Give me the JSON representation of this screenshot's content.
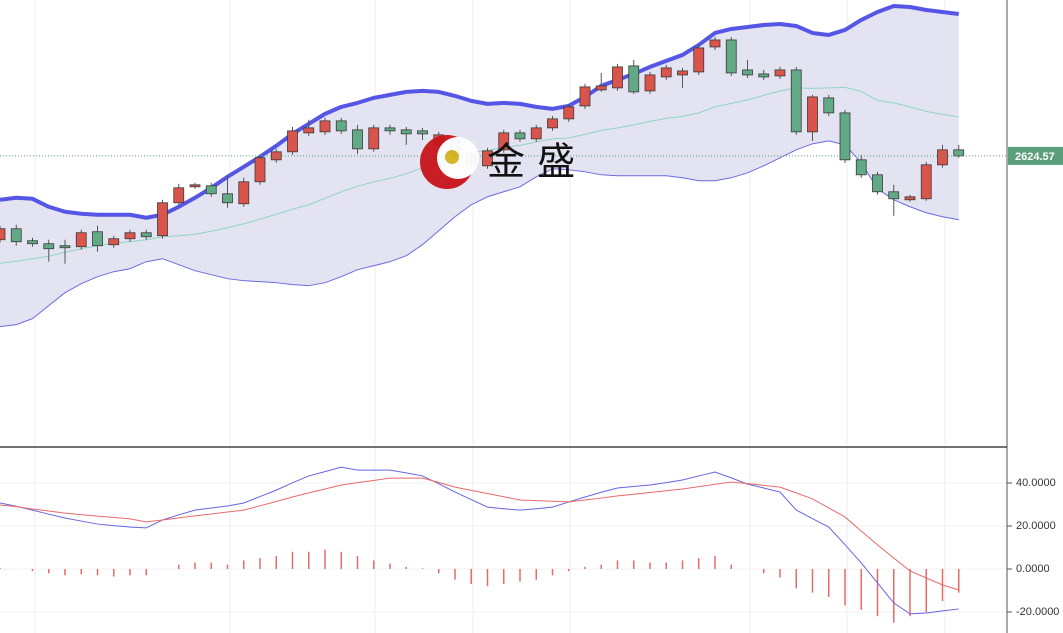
{
  "chart_data": [
    {
      "type": "candlestick",
      "ylim": [
        2508,
        2687
      ],
      "up_color": "#d9544a",
      "down_color": "#62a986",
      "band_fill": "#e3e3f1",
      "open": [
        2591,
        2595.4,
        2590.6,
        2589.4,
        2588.6,
        2588.2,
        2594.2,
        2589,
        2591.4,
        2593.8,
        2592.6,
        2605.8,
        2612.2,
        2612.6,
        2609.4,
        2605.4,
        2614.2,
        2623,
        2626.2,
        2633.8,
        2634.2,
        2638.6,
        2635,
        2627.4,
        2635.8,
        2635,
        2634.6,
        2629,
        2631,
        2625,
        2620.6,
        2627,
        2633.8,
        2631.4,
        2635.8,
        2639.4,
        2644.6,
        2651,
        2651.8,
        2660.6,
        2650.6,
        2656.2,
        2657,
        2658.2,
        2668.2,
        2671,
        2659,
        2657.4,
        2656.6,
        2659,
        2634.2,
        2647.8,
        2641.8,
        2623,
        2617,
        2610.2,
        2607,
        2607.4,
        2621,
        2627
      ],
      "high": [
        2596.6,
        2597,
        2591.8,
        2591,
        2591,
        2595,
        2596.6,
        2592.6,
        2595,
        2595,
        2607,
        2613.4,
        2613.8,
        2613.8,
        2617,
        2615.8,
        2625,
        2627.4,
        2636.2,
        2639,
        2639.8,
        2639.8,
        2637,
        2637,
        2637,
        2636.2,
        2635.8,
        2634.2,
        2632.2,
        2626.2,
        2627.8,
        2635,
        2635,
        2637,
        2640.6,
        2645.4,
        2653.4,
        2657.8,
        2661.4,
        2663,
        2658.2,
        2661,
        2659.8,
        2669,
        2672.2,
        2672.2,
        2663,
        2659,
        2660.2,
        2660.2,
        2649,
        2649,
        2643,
        2625,
        2618.2,
        2613,
        2609,
        2622.2,
        2629,
        2629
      ],
      "low": [
        2589.8,
        2588.6,
        2588.2,
        2582.2,
        2581.4,
        2587,
        2586.2,
        2587.8,
        2590.2,
        2591,
        2591.4,
        2605,
        2611.4,
        2608.2,
        2603.8,
        2604.2,
        2613,
        2621.8,
        2625,
        2632.6,
        2633,
        2633.4,
        2625.4,
        2626.2,
        2633,
        2629,
        2631,
        2627.8,
        2623.8,
        2619.8,
        2619.4,
        2625.8,
        2630.2,
        2630.2,
        2634.6,
        2638.2,
        2643.4,
        2650.2,
        2650.6,
        2649.4,
        2649.4,
        2655,
        2651.8,
        2657,
        2667,
        2656.6,
        2655.8,
        2655,
        2655.4,
        2633,
        2630.6,
        2640.6,
        2621.8,
        2615.8,
        2609,
        2600.6,
        2606.2,
        2606.6,
        2619.8,
        2623.8
      ],
      "close": [
        2595.4,
        2590.2,
        2589.4,
        2587.4,
        2587.8,
        2593.8,
        2588.6,
        2591.4,
        2593.8,
        2592.2,
        2605.8,
        2611.8,
        2613,
        2609.4,
        2605.8,
        2614.2,
        2623.8,
        2626.2,
        2634.6,
        2635.8,
        2638.6,
        2634.6,
        2627.4,
        2635.8,
        2634.6,
        2633.4,
        2633.4,
        2633,
        2625,
        2621,
        2626.6,
        2633.8,
        2631.4,
        2635.8,
        2639.4,
        2644.2,
        2652.2,
        2652.6,
        2660.2,
        2650.2,
        2657,
        2659.8,
        2658.6,
        2667.8,
        2671,
        2657.8,
        2657,
        2656.2,
        2659,
        2634.2,
        2648.2,
        2641.8,
        2623,
        2617,
        2610.2,
        2607.4,
        2608.2,
        2621,
        2627,
        2624.57
      ],
      "series": [
        {
          "color": "#5555e6",
          "values": [
            2607,
            2607.8,
            2607.4,
            2604.2,
            2602.2,
            2601.4,
            2601,
            2601,
            2601,
            2599.8,
            2601,
            2604.2,
            2607.8,
            2611.8,
            2616.2,
            2620.2,
            2624.2,
            2628.6,
            2633.4,
            2637.4,
            2641.4,
            2644.2,
            2645.8,
            2647.8,
            2649,
            2650.2,
            2650.6,
            2650.2,
            2648.6,
            2646.6,
            2645.4,
            2645.8,
            2645.4,
            2644.2,
            2643.4,
            2644.6,
            2648.2,
            2652.6,
            2655,
            2657.4,
            2660.2,
            2662.6,
            2665,
            2669,
            2673.8,
            2675.4,
            2676.2,
            2677,
            2677.4,
            2676.6,
            2673.8,
            2673,
            2675,
            2679,
            2682.2,
            2684.6,
            2684.2,
            2683,
            2682.2,
            2681.4
          ]
        },
        {
          "color": "#8fd6c6",
          "values": [
            2581.6,
            2582.4,
            2583.4,
            2584.4,
            2586,
            2587.4,
            2588.6,
            2589.6,
            2590.2,
            2591,
            2592.2,
            2592.6,
            2593.2,
            2594.4,
            2595.8,
            2597.4,
            2599.2,
            2601.2,
            2603.2,
            2605,
            2607.6,
            2610.2,
            2612.4,
            2614.2,
            2615.6,
            2617.4,
            2619.8,
            2622.4,
            2624.4,
            2625.8,
            2626.8,
            2628,
            2628.8,
            2630.2,
            2631.4,
            2631.8,
            2633.2,
            2634.8,
            2635.8,
            2637,
            2638.4,
            2639.6,
            2640.4,
            2641.8,
            2644.2,
            2645.6,
            2647,
            2648.8,
            2650.6,
            2651.8,
            2651.6,
            2651.8,
            2652,
            2650.4,
            2646.8,
            2645.8,
            2644.2,
            2642.4,
            2641.2,
            2640.2
          ]
        },
        {
          "color": "#6b6bdf",
          "values": [
            2556.2,
            2557,
            2559.4,
            2564.6,
            2569.8,
            2573.4,
            2576.2,
            2578.2,
            2579.4,
            2582.2,
            2583.4,
            2581,
            2578.6,
            2577,
            2575.4,
            2574.6,
            2574.2,
            2573.8,
            2573,
            2572.6,
            2573.8,
            2576.2,
            2579,
            2580.6,
            2582.2,
            2584.6,
            2589,
            2594.6,
            2600.2,
            2605,
            2608.2,
            2610.2,
            2612.2,
            2616.2,
            2619.4,
            2619,
            2618.2,
            2617,
            2616.6,
            2616.6,
            2616.6,
            2616.6,
            2615.8,
            2614.6,
            2614.6,
            2615.8,
            2617.8,
            2620.6,
            2623.8,
            2627,
            2629.4,
            2630.6,
            2629,
            2621.8,
            2611.4,
            2607,
            2604.2,
            2601.8,
            2600.2,
            2599
          ]
        }
      ],
      "last_price": 2624.57,
      "last_price_color": "#5a9e7a",
      "watermark": "金 盛"
    },
    {
      "type": "macd",
      "ylim": [
        -29.8,
        56.3
      ],
      "yticks": [
        {
          "value": 40,
          "label": "40.0000"
        },
        {
          "value": 20,
          "label": "20.0000"
        },
        {
          "value": 0,
          "label": "0.0000"
        },
        {
          "value": -20,
          "label": "-20.0000"
        }
      ],
      "series": [
        {
          "color": "#6666e0",
          "values": [
            30.7,
            29.2,
            27.4,
            25.5,
            23.7,
            22.3,
            20.9,
            20.2,
            19.5,
            19.1,
            22.8,
            25.2,
            27.4,
            28.4,
            29.3,
            30.7,
            33.7,
            36.7,
            40.1,
            43.3,
            45.3,
            47.4,
            46,
            46,
            46,
            44.7,
            43.3,
            39.7,
            35.8,
            32.3,
            28.8,
            28,
            27.4,
            28,
            28.8,
            31.2,
            33.5,
            35.7,
            37.7,
            38.4,
            39.1,
            40.2,
            41.4,
            43.3,
            45.1,
            42.4,
            39.5,
            37.7,
            35.8,
            27.4,
            23.4,
            19.5,
            11.3,
            2.8,
            -6.5,
            -15.8,
            -20.9,
            -20.5,
            -19.5,
            -18.6
          ]
        },
        {
          "color": "#e86a6a",
          "values": [
            29.8,
            29,
            27.9,
            27,
            26,
            25.3,
            24.6,
            24,
            23.3,
            21.9,
            22.8,
            23.8,
            24.7,
            25.6,
            26.5,
            27.4,
            29.4,
            31.4,
            33.5,
            35.4,
            37.2,
            39.1,
            40.2,
            41.2,
            42.3,
            42.3,
            42.3,
            40.3,
            38.1,
            36.6,
            35.1,
            33.6,
            32.1,
            31.8,
            31.5,
            31.2,
            32.1,
            33,
            34,
            34.8,
            35.6,
            36.4,
            37.2,
            38.3,
            39.4,
            40.5,
            39.7,
            38.9,
            38.1,
            35.4,
            32.6,
            28.4,
            24.2,
            17.6,
            11.2,
            5.1,
            -0.9,
            -4.2,
            -7.4,
            -9.8
          ]
        }
      ],
      "histogram": {
        "color": "#e86a6a",
        "values": [
          0.5,
          0,
          -1,
          -2,
          -3,
          -2.5,
          -3,
          -3.5,
          -3,
          -3,
          0,
          2,
          3,
          3,
          2,
          4,
          5,
          6,
          8,
          8,
          9,
          8,
          6,
          4,
          2.5,
          1,
          0.3,
          -2,
          -5,
          -7,
          -8,
          -7,
          -6,
          -5,
          -3,
          -1,
          1,
          2,
          4,
          4,
          3,
          3,
          4,
          5,
          6,
          2,
          0,
          -2,
          -4,
          -9,
          -11,
          -13,
          -17,
          -19,
          -22,
          -25,
          -22,
          -20,
          -15,
          -11
        ]
      }
    }
  ]
}
